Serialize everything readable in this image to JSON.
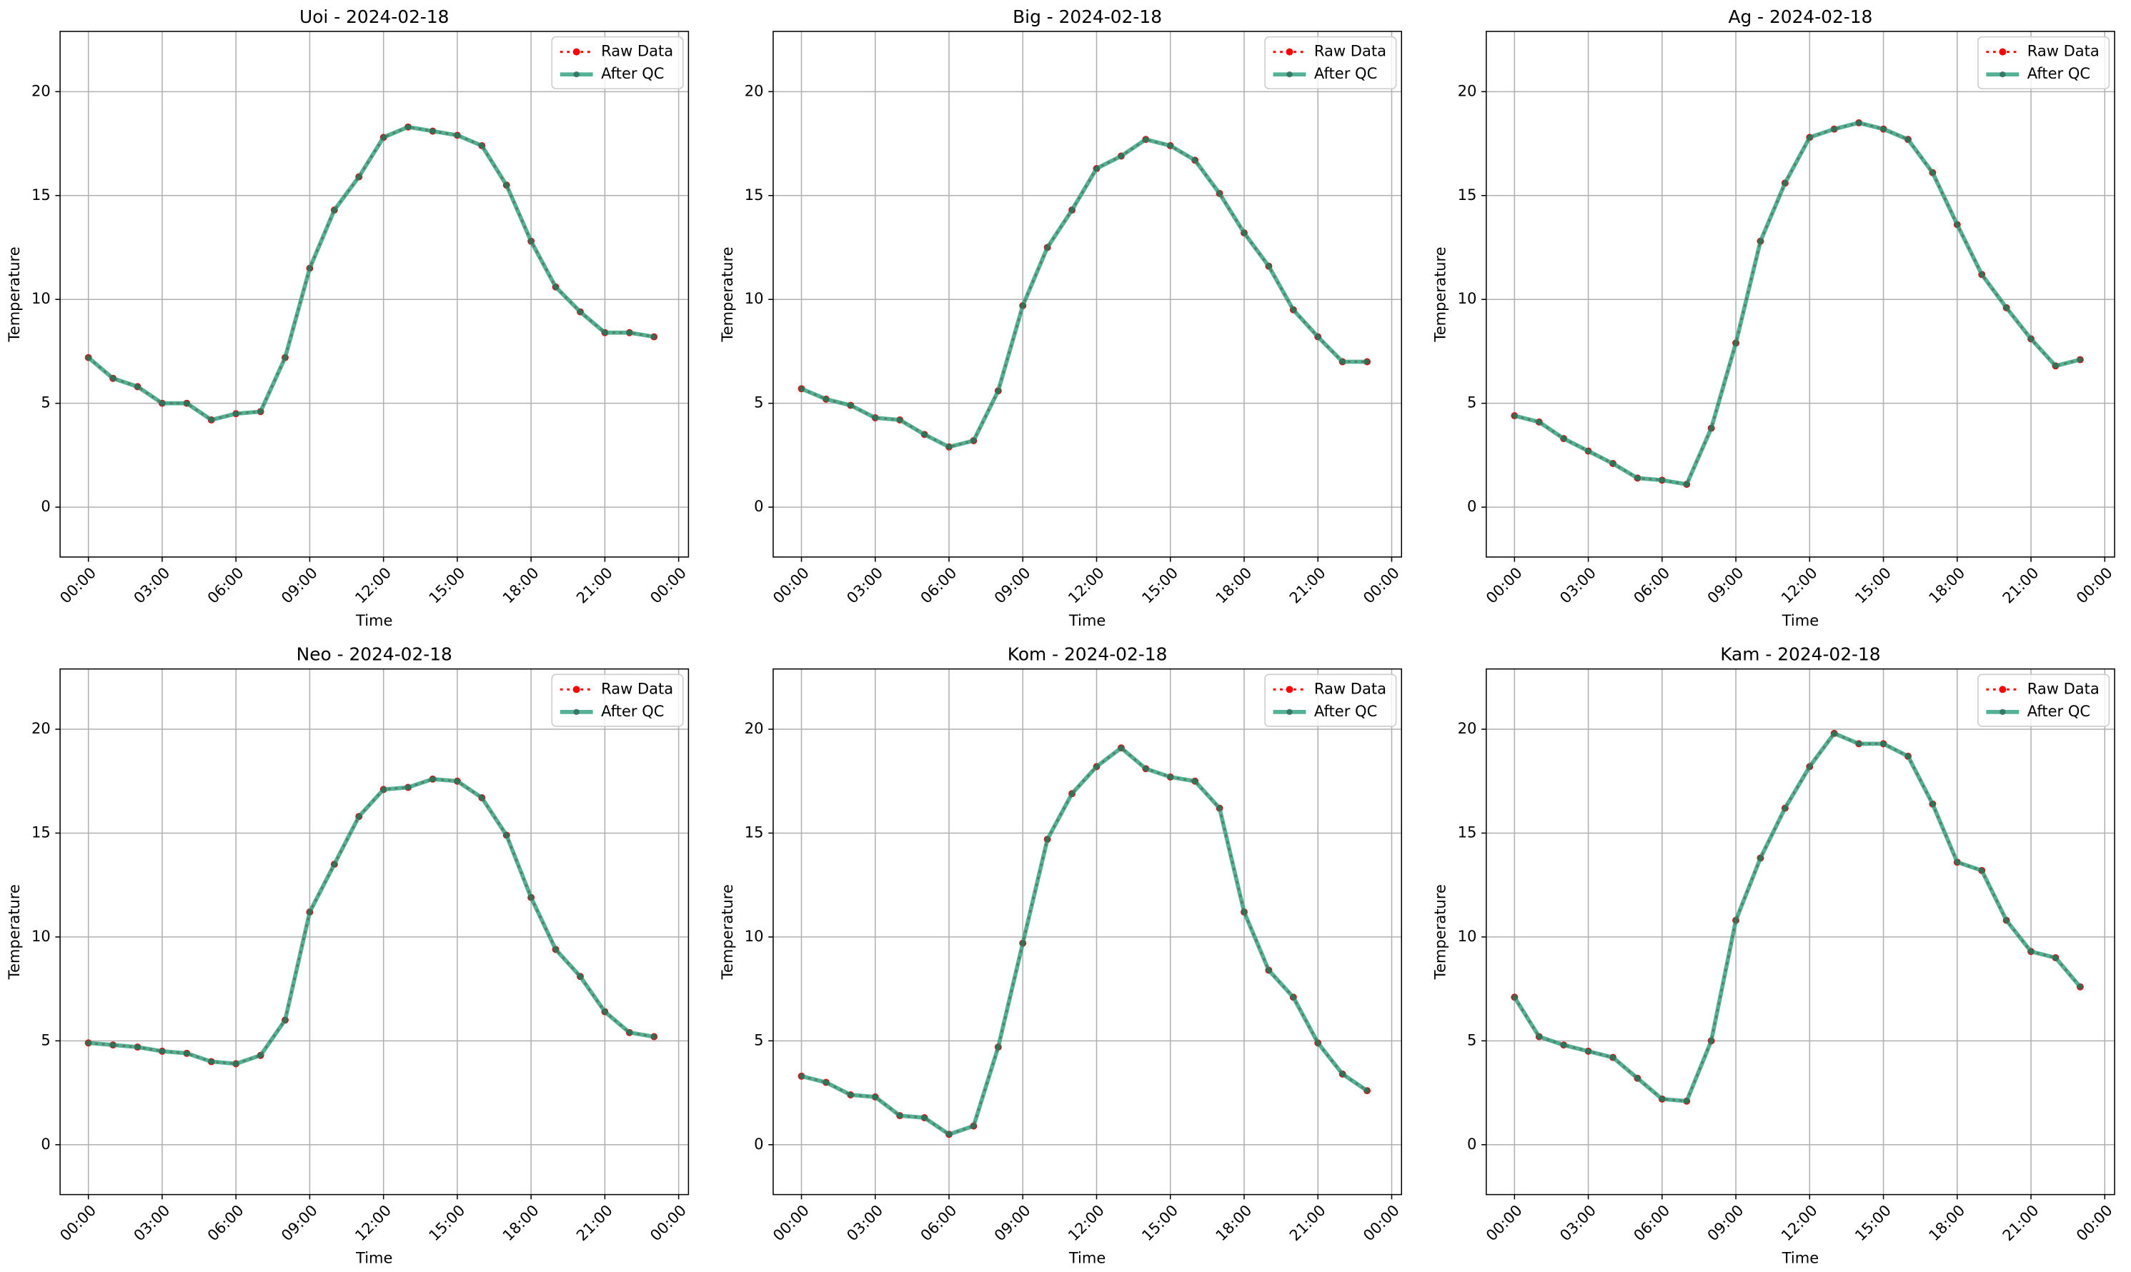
{
  "chart_data": [
    {
      "type": "line",
      "title": "Uoi - 2024-02-18",
      "xlabel": "Time",
      "ylabel": "Temperature",
      "x": [
        0,
        1,
        2,
        3,
        4,
        5,
        6,
        7,
        8,
        9,
        10,
        11,
        12,
        13,
        14,
        15,
        16,
        17,
        18,
        19,
        20,
        21,
        22,
        23
      ],
      "series": [
        {
          "name": "Raw Data",
          "color": "#ff0000",
          "values": [
            7.2,
            6.2,
            5.8,
            5.0,
            5.0,
            4.2,
            4.5,
            4.6,
            7.2,
            11.5,
            14.3,
            15.9,
            17.8,
            18.3,
            18.1,
            17.9,
            17.4,
            15.5,
            12.8,
            10.6,
            9.4,
            8.4,
            8.4,
            8.2
          ]
        },
        {
          "name": "After QC",
          "color": "#2a9d7a",
          "values": [
            7.2,
            6.2,
            5.8,
            5.0,
            5.0,
            4.2,
            4.5,
            4.6,
            7.2,
            11.5,
            14.3,
            15.9,
            17.8,
            18.3,
            18.1,
            17.9,
            17.4,
            15.5,
            12.8,
            10.6,
            9.4,
            8.4,
            8.4,
            8.2
          ]
        }
      ],
      "xlim": [
        -1.15,
        24.4
      ],
      "ylim": [
        -2.4,
        22.9
      ],
      "xticks": [
        {
          "value": 0,
          "label": "00:00"
        },
        {
          "value": 3,
          "label": "03:00"
        },
        {
          "value": 6,
          "label": "06:00"
        },
        {
          "value": 9,
          "label": "09:00"
        },
        {
          "value": 12,
          "label": "12:00"
        },
        {
          "value": 15,
          "label": "15:00"
        },
        {
          "value": 18,
          "label": "18:00"
        },
        {
          "value": 21,
          "label": "21:00"
        },
        {
          "value": 24,
          "label": "00:00"
        }
      ],
      "yticks": [
        0,
        5,
        10,
        15,
        20
      ],
      "grid": true,
      "legend": "upper right"
    },
    {
      "type": "line",
      "title": "Big - 2024-02-18",
      "xlabel": "Time",
      "ylabel": "Temperature",
      "x": [
        0,
        1,
        2,
        3,
        4,
        5,
        6,
        7,
        8,
        9,
        10,
        11,
        12,
        13,
        14,
        15,
        16,
        17,
        18,
        19,
        20,
        21,
        22,
        23
      ],
      "series": [
        {
          "name": "Raw Data",
          "color": "#ff0000",
          "values": [
            5.7,
            5.2,
            4.9,
            4.3,
            4.2,
            3.5,
            2.9,
            3.2,
            5.6,
            9.7,
            12.5,
            14.3,
            16.3,
            16.9,
            17.7,
            17.4,
            16.7,
            15.1,
            13.2,
            11.6,
            9.5,
            8.2,
            7.0,
            7.0
          ]
        },
        {
          "name": "After QC",
          "color": "#2a9d7a",
          "values": [
            5.7,
            5.2,
            4.9,
            4.3,
            4.2,
            3.5,
            2.9,
            3.2,
            5.6,
            9.7,
            12.5,
            14.3,
            16.3,
            16.9,
            17.7,
            17.4,
            16.7,
            15.1,
            13.2,
            11.6,
            9.5,
            8.2,
            7.0,
            7.0
          ]
        }
      ],
      "xlim": [
        -1.15,
        24.4
      ],
      "ylim": [
        -2.4,
        22.9
      ],
      "xticks": [
        {
          "value": 0,
          "label": "00:00"
        },
        {
          "value": 3,
          "label": "03:00"
        },
        {
          "value": 6,
          "label": "06:00"
        },
        {
          "value": 9,
          "label": "09:00"
        },
        {
          "value": 12,
          "label": "12:00"
        },
        {
          "value": 15,
          "label": "15:00"
        },
        {
          "value": 18,
          "label": "18:00"
        },
        {
          "value": 21,
          "label": "21:00"
        },
        {
          "value": 24,
          "label": "00:00"
        }
      ],
      "yticks": [
        0,
        5,
        10,
        15,
        20
      ],
      "grid": true,
      "legend": "upper right"
    },
    {
      "type": "line",
      "title": "Ag - 2024-02-18",
      "xlabel": "Time",
      "ylabel": "Temperature",
      "x": [
        0,
        1,
        2,
        3,
        4,
        5,
        6,
        7,
        8,
        9,
        10,
        11,
        12,
        13,
        14,
        15,
        16,
        17,
        18,
        19,
        20,
        21,
        22,
        23
      ],
      "series": [
        {
          "name": "Raw Data",
          "color": "#ff0000",
          "values": [
            4.4,
            4.1,
            3.3,
            2.7,
            2.1,
            1.4,
            1.3,
            1.1,
            3.8,
            7.9,
            12.8,
            15.6,
            17.8,
            18.2,
            18.5,
            18.2,
            17.7,
            16.1,
            13.6,
            11.2,
            9.6,
            8.1,
            6.8,
            7.1
          ]
        },
        {
          "name": "After QC",
          "color": "#2a9d7a",
          "values": [
            4.4,
            4.1,
            3.3,
            2.7,
            2.1,
            1.4,
            1.3,
            1.1,
            3.8,
            7.9,
            12.8,
            15.6,
            17.8,
            18.2,
            18.5,
            18.2,
            17.7,
            16.1,
            13.6,
            11.2,
            9.6,
            8.1,
            6.8,
            7.1
          ]
        }
      ],
      "xlim": [
        -1.15,
        24.4
      ],
      "ylim": [
        -2.4,
        22.9
      ],
      "xticks": [
        {
          "value": 0,
          "label": "00:00"
        },
        {
          "value": 3,
          "label": "03:00"
        },
        {
          "value": 6,
          "label": "06:00"
        },
        {
          "value": 9,
          "label": "09:00"
        },
        {
          "value": 12,
          "label": "12:00"
        },
        {
          "value": 15,
          "label": "15:00"
        },
        {
          "value": 18,
          "label": "18:00"
        },
        {
          "value": 21,
          "label": "21:00"
        },
        {
          "value": 24,
          "label": "00:00"
        }
      ],
      "yticks": [
        0,
        5,
        10,
        15,
        20
      ],
      "grid": true,
      "legend": "upper right"
    },
    {
      "type": "line",
      "title": "Neo - 2024-02-18",
      "xlabel": "Time",
      "ylabel": "Temperature",
      "x": [
        0,
        1,
        2,
        3,
        4,
        5,
        6,
        7,
        8,
        9,
        10,
        11,
        12,
        13,
        14,
        15,
        16,
        17,
        18,
        19,
        20,
        21,
        22,
        23
      ],
      "series": [
        {
          "name": "Raw Data",
          "color": "#ff0000",
          "values": [
            4.9,
            4.8,
            4.7,
            4.5,
            4.4,
            4.0,
            3.9,
            4.3,
            6.0,
            11.2,
            13.5,
            15.8,
            17.1,
            17.2,
            17.6,
            17.5,
            16.7,
            14.9,
            11.9,
            9.4,
            8.1,
            6.4,
            5.4,
            5.2
          ]
        },
        {
          "name": "After QC",
          "color": "#2a9d7a",
          "values": [
            4.9,
            4.8,
            4.7,
            4.5,
            4.4,
            4.0,
            3.9,
            4.3,
            6.0,
            11.2,
            13.5,
            15.8,
            17.1,
            17.2,
            17.6,
            17.5,
            16.7,
            14.9,
            11.9,
            9.4,
            8.1,
            6.4,
            5.4,
            5.2
          ]
        }
      ],
      "xlim": [
        -1.15,
        24.4
      ],
      "ylim": [
        -2.4,
        22.9
      ],
      "xticks": [
        {
          "value": 0,
          "label": "00:00"
        },
        {
          "value": 3,
          "label": "03:00"
        },
        {
          "value": 6,
          "label": "06:00"
        },
        {
          "value": 9,
          "label": "09:00"
        },
        {
          "value": 12,
          "label": "12:00"
        },
        {
          "value": 15,
          "label": "15:00"
        },
        {
          "value": 18,
          "label": "18:00"
        },
        {
          "value": 21,
          "label": "21:00"
        },
        {
          "value": 24,
          "label": "00:00"
        }
      ],
      "yticks": [
        0,
        5,
        10,
        15,
        20
      ],
      "grid": true,
      "legend": "upper right"
    },
    {
      "type": "line",
      "title": "Kom - 2024-02-18",
      "xlabel": "Time",
      "ylabel": "Temperature",
      "x": [
        0,
        1,
        2,
        3,
        4,
        5,
        6,
        7,
        8,
        9,
        10,
        11,
        12,
        13,
        14,
        15,
        16,
        17,
        18,
        19,
        20,
        21,
        22,
        23
      ],
      "series": [
        {
          "name": "Raw Data",
          "color": "#ff0000",
          "values": [
            3.3,
            3.0,
            2.4,
            2.3,
            1.4,
            1.3,
            0.5,
            0.9,
            4.7,
            9.7,
            14.7,
            16.9,
            18.2,
            19.1,
            18.1,
            17.7,
            17.5,
            16.2,
            11.2,
            8.4,
            7.1,
            4.9,
            3.4,
            2.6
          ]
        },
        {
          "name": "After QC",
          "color": "#2a9d7a",
          "values": [
            3.3,
            3.0,
            2.4,
            2.3,
            1.4,
            1.3,
            0.5,
            0.9,
            4.7,
            9.7,
            14.7,
            16.9,
            18.2,
            19.1,
            18.1,
            17.7,
            17.5,
            16.2,
            11.2,
            8.4,
            7.1,
            4.9,
            3.4,
            2.6
          ]
        }
      ],
      "xlim": [
        -1.15,
        24.4
      ],
      "ylim": [
        -2.4,
        22.9
      ],
      "xticks": [
        {
          "value": 0,
          "label": "00:00"
        },
        {
          "value": 3,
          "label": "03:00"
        },
        {
          "value": 6,
          "label": "06:00"
        },
        {
          "value": 9,
          "label": "09:00"
        },
        {
          "value": 12,
          "label": "12:00"
        },
        {
          "value": 15,
          "label": "15:00"
        },
        {
          "value": 18,
          "label": "18:00"
        },
        {
          "value": 21,
          "label": "21:00"
        },
        {
          "value": 24,
          "label": "00:00"
        }
      ],
      "yticks": [
        0,
        5,
        10,
        15,
        20
      ],
      "grid": true,
      "legend": "upper right"
    },
    {
      "type": "line",
      "title": "Kam - 2024-02-18",
      "xlabel": "Time",
      "ylabel": "Temperature",
      "x": [
        0,
        1,
        2,
        3,
        4,
        5,
        6,
        7,
        8,
        9,
        10,
        11,
        12,
        13,
        14,
        15,
        16,
        17,
        18,
        19,
        20,
        21,
        22,
        23
      ],
      "series": [
        {
          "name": "Raw Data",
          "color": "#ff0000",
          "values": [
            7.1,
            5.2,
            4.8,
            4.5,
            4.2,
            3.2,
            2.2,
            2.1,
            5.0,
            10.8,
            13.8,
            16.2,
            18.2,
            19.8,
            19.3,
            19.3,
            18.7,
            16.4,
            13.6,
            13.2,
            10.8,
            9.3,
            9.0,
            7.6
          ]
        },
        {
          "name": "After QC",
          "color": "#2a9d7a",
          "values": [
            7.1,
            5.2,
            4.8,
            4.5,
            4.2,
            3.2,
            2.2,
            2.1,
            5.0,
            10.8,
            13.8,
            16.2,
            18.2,
            19.8,
            19.3,
            19.3,
            18.7,
            16.4,
            13.6,
            13.2,
            10.8,
            9.3,
            9.0,
            7.6
          ]
        }
      ],
      "xlim": [
        -1.15,
        24.4
      ],
      "ylim": [
        -2.4,
        22.9
      ],
      "xticks": [
        {
          "value": 0,
          "label": "00:00"
        },
        {
          "value": 3,
          "label": "03:00"
        },
        {
          "value": 6,
          "label": "06:00"
        },
        {
          "value": 9,
          "label": "09:00"
        },
        {
          "value": 12,
          "label": "12:00"
        },
        {
          "value": 15,
          "label": "15:00"
        },
        {
          "value": 18,
          "label": "18:00"
        },
        {
          "value": 21,
          "label": "21:00"
        },
        {
          "value": 24,
          "label": "00:00"
        }
      ],
      "yticks": [
        0,
        5,
        10,
        15,
        20
      ],
      "grid": true,
      "legend": "upper right"
    }
  ]
}
